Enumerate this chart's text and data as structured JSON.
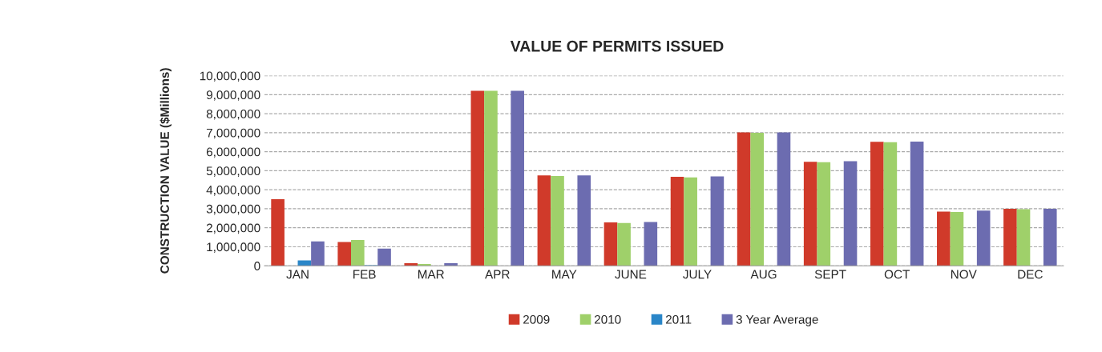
{
  "chart_data": {
    "type": "bar",
    "title": "VALUE OF PERMITS ISSUED",
    "ylabel": "CONSTRUCTION VALUE ($Millions)",
    "categories": [
      "JAN",
      "FEB",
      "MAR",
      "APR",
      "MAY",
      "JUNE",
      "JULY",
      "AUG",
      "SEPT",
      "OCT",
      "NOV",
      "DEC"
    ],
    "series": [
      {
        "name": "2009",
        "color": "#d03a2a",
        "values": [
          3500000,
          1250000,
          130000,
          9200000,
          4750000,
          2280000,
          4680000,
          7020000,
          5470000,
          6520000,
          2850000,
          3000000
        ]
      },
      {
        "name": "2010",
        "color": "#9fd06a",
        "values": [
          null,
          1350000,
          90000,
          9200000,
          4720000,
          2250000,
          4650000,
          7000000,
          5450000,
          6500000,
          2830000,
          2980000
        ]
      },
      {
        "name": "2011",
        "color": "#2a86c8",
        "values": [
          280000,
          30000,
          0,
          null,
          null,
          null,
          null,
          null,
          null,
          null,
          null,
          null
        ]
      },
      {
        "name": "3 Year Average",
        "color": "#6c6cb0",
        "values": [
          1280000,
          900000,
          130000,
          9200000,
          4750000,
          2300000,
          4700000,
          7020000,
          5500000,
          6530000,
          2900000,
          3000000
        ]
      }
    ],
    "ylim": [
      0,
      10000000
    ],
    "yticks": [
      {
        "value": 0,
        "label": "0"
      },
      {
        "value": 1000000,
        "label": "1,000,000"
      },
      {
        "value": 2000000,
        "label": "2,000,000"
      },
      {
        "value": 3000000,
        "label": "3,000,000"
      },
      {
        "value": 4000000,
        "label": "4,000,000"
      },
      {
        "value": 5000000,
        "label": "5,000,000"
      },
      {
        "value": 6000000,
        "label": "6,000,000"
      },
      {
        "value": 7000000,
        "label": "7,000,000"
      },
      {
        "value": 8000000,
        "label": "8,000,000"
      },
      {
        "value": 9000000,
        "label": "9,000,000"
      },
      {
        "value": 10000000,
        "label": "10,000,000"
      }
    ],
    "grid": "y",
    "legend": "bottom"
  }
}
